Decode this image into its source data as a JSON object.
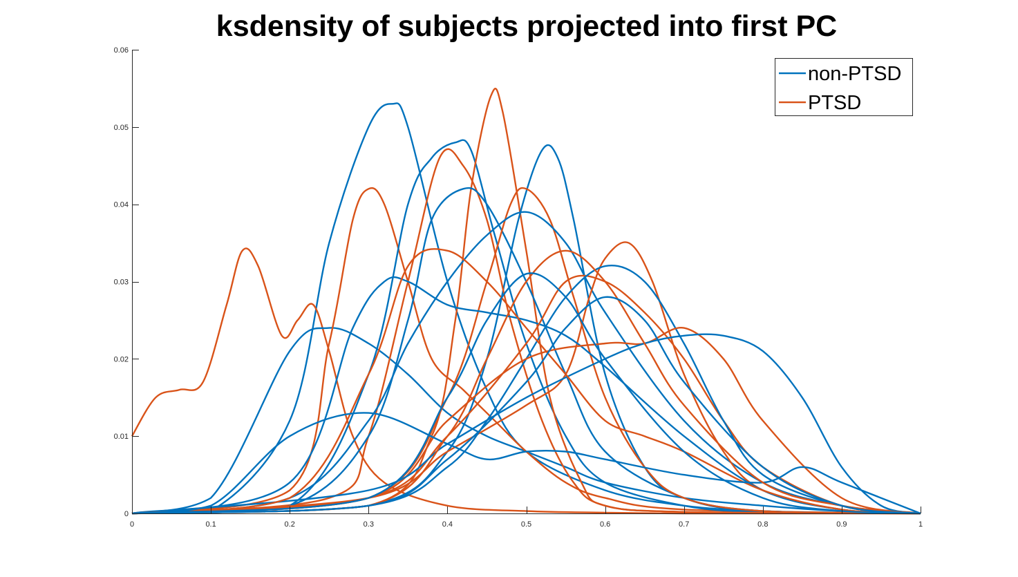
{
  "chart_data": {
    "type": "line",
    "title": "ksdensity of subjects projected into first PC",
    "xlabel": "",
    "ylabel": "",
    "xlim": [
      0,
      1
    ],
    "ylim": [
      0,
      0.06
    ],
    "xticks": [
      0,
      0.1,
      0.2,
      0.3,
      0.4,
      0.5,
      0.6,
      0.7,
      0.8,
      0.9,
      1
    ],
    "xtick_labels": [
      "0",
      "0.1",
      "0.2",
      "0.3",
      "0.4",
      "0.5",
      "0.6",
      "0.7",
      "0.8",
      "0.9",
      "1"
    ],
    "yticks": [
      0,
      0.01,
      0.02,
      0.03,
      0.04,
      0.05,
      0.06
    ],
    "ytick_labels": [
      "0",
      "0.01",
      "0.02",
      "0.03",
      "0.04",
      "0.05",
      "0.06"
    ],
    "grid": false,
    "legend_position": "top-right",
    "colors": {
      "non-PTSD": "#0072BD",
      "PTSD": "#D95319"
    },
    "series": [
      {
        "name": "non-PTSD",
        "color": "#0072BD",
        "description": "overlapping kernel density curves of individual non-PTSD subjects",
        "curves": [
          {
            "x": [
              0,
              0.1,
              0.2,
              0.25,
              0.3,
              0.33,
              0.35,
              0.4,
              0.45,
              0.5,
              0.6,
              0.7,
              0.8,
              0.9,
              1
            ],
            "y": [
              0,
              0.0003,
              0.012,
              0.035,
              0.05,
              0.053,
              0.05,
              0.03,
              0.016,
              0.008,
              0.003,
              0.001,
              0.0003,
              0.0001,
              0
            ]
          },
          {
            "x": [
              0,
              0.1,
              0.2,
              0.25,
              0.3,
              0.35,
              0.4,
              0.45,
              0.5,
              0.55,
              0.6,
              0.7,
              0.8,
              0.9,
              1
            ],
            "y": [
              0,
              0.002,
              0.021,
              0.024,
              0.022,
              0.018,
              0.013,
              0.01,
              0.008,
              0.006,
              0.004,
              0.002,
              0.001,
              0.0003,
              0
            ]
          },
          {
            "x": [
              0,
              0.2,
              0.3,
              0.35,
              0.38,
              0.41,
              0.43,
              0.46,
              0.5,
              0.55,
              0.6,
              0.7,
              0.8,
              1
            ],
            "y": [
              0,
              0.001,
              0.018,
              0.04,
              0.046,
              0.048,
              0.047,
              0.036,
              0.022,
              0.01,
              0.004,
              0.001,
              0.0002,
              0
            ]
          },
          {
            "x": [
              0,
              0.3,
              0.4,
              0.45,
              0.49,
              0.52,
              0.54,
              0.56,
              0.6,
              0.65,
              0.7,
              0.8,
              1
            ],
            "y": [
              0,
              0.001,
              0.008,
              0.02,
              0.038,
              0.047,
              0.046,
              0.038,
              0.018,
              0.006,
              0.002,
              0.0003,
              0
            ]
          },
          {
            "x": [
              0,
              0.2,
              0.3,
              0.35,
              0.38,
              0.42,
              0.45,
              0.5,
              0.55,
              0.6,
              0.7,
              0.8,
              1
            ],
            "y": [
              0,
              0.001,
              0.01,
              0.025,
              0.038,
              0.042,
              0.04,
              0.03,
              0.018,
              0.008,
              0.002,
              0.0003,
              0
            ]
          },
          {
            "x": [
              0,
              0.2,
              0.3,
              0.35,
              0.4,
              0.45,
              0.5,
              0.55,
              0.6,
              0.7,
              0.8,
              0.9,
              1
            ],
            "y": [
              0,
              0.002,
              0.012,
              0.022,
              0.03,
              0.036,
              0.039,
              0.035,
              0.026,
              0.012,
              0.004,
              0.001,
              0
            ]
          },
          {
            "x": [
              0,
              0.2,
              0.28,
              0.32,
              0.35,
              0.4,
              0.45,
              0.5,
              0.55,
              0.6,
              0.7,
              0.8,
              0.9,
              1
            ],
            "y": [
              0,
              0.004,
              0.024,
              0.03,
              0.03,
              0.027,
              0.026,
              0.025,
              0.023,
              0.019,
              0.01,
              0.003,
              0.0005,
              0
            ]
          },
          {
            "x": [
              0,
              0.3,
              0.4,
              0.45,
              0.5,
              0.55,
              0.6,
              0.65,
              0.7,
              0.75,
              0.8,
              0.9,
              1
            ],
            "y": [
              0,
              0.001,
              0.006,
              0.012,
              0.02,
              0.028,
              0.032,
              0.03,
              0.022,
              0.012,
              0.005,
              0.001,
              0
            ]
          },
          {
            "x": [
              0,
              0.3,
              0.4,
              0.5,
              0.6,
              0.65,
              0.7,
              0.75,
              0.8,
              0.85,
              0.9,
              0.95,
              1
            ],
            "y": [
              0,
              0.003,
              0.009,
              0.015,
              0.02,
              0.022,
              0.023,
              0.023,
              0.021,
              0.015,
              0.006,
              0.001,
              0
            ]
          },
          {
            "x": [
              0,
              0.1,
              0.2,
              0.3,
              0.4,
              0.45,
              0.5,
              0.55,
              0.6,
              0.7,
              0.8,
              0.85,
              0.9,
              1
            ],
            "y": [
              0,
              0.001,
              0.01,
              0.013,
              0.009,
              0.007,
              0.008,
              0.008,
              0.007,
              0.005,
              0.004,
              0.006,
              0.004,
              0
            ]
          },
          {
            "x": [
              0,
              0.3,
              0.4,
              0.45,
              0.5,
              0.55,
              0.6,
              0.7,
              0.8,
              0.9,
              1
            ],
            "y": [
              0,
              0.002,
              0.015,
              0.025,
              0.031,
              0.028,
              0.02,
              0.008,
              0.002,
              0.0003,
              0
            ]
          },
          {
            "x": [
              0,
              0.3,
              0.4,
              0.5,
              0.55,
              0.6,
              0.65,
              0.7,
              0.8,
              0.9,
              1
            ],
            "y": [
              0,
              0.001,
              0.007,
              0.017,
              0.024,
              0.028,
              0.025,
              0.017,
              0.006,
              0.001,
              0
            ]
          }
        ]
      },
      {
        "name": "PTSD",
        "color": "#D95319",
        "description": "overlapping kernel density curves of individual PTSD subjects",
        "curves": [
          {
            "x": [
              0,
              0.03,
              0.06,
              0.09,
              0.12,
              0.14,
              0.16,
              0.19,
              0.21,
              0.23,
              0.25,
              0.28,
              0.32,
              0.4,
              0.5,
              0.6,
              0.7,
              0.8,
              1
            ],
            "y": [
              0.01,
              0.015,
              0.016,
              0.017,
              0.027,
              0.034,
              0.032,
              0.023,
              0.025,
              0.027,
              0.021,
              0.01,
              0.004,
              0.001,
              0.0003,
              0.0001,
              0,
              0,
              0
            ]
          },
          {
            "x": [
              0,
              0.2,
              0.25,
              0.28,
              0.3,
              0.32,
              0.35,
              0.38,
              0.42,
              0.46,
              0.5,
              0.55,
              0.6,
              0.7,
              1
            ],
            "y": [
              0,
              0.003,
              0.022,
              0.038,
              0.042,
              0.04,
              0.03,
              0.02,
              0.016,
              0.012,
              0.008,
              0.004,
              0.002,
              0.0005,
              0
            ]
          },
          {
            "x": [
              0,
              0.3,
              0.38,
              0.41,
              0.43,
              0.455,
              0.47,
              0.5,
              0.53,
              0.57,
              0.6,
              0.7,
              1
            ],
            "y": [
              0,
              0.001,
              0.01,
              0.025,
              0.042,
              0.054,
              0.052,
              0.034,
              0.015,
              0.004,
              0.001,
              0.0002,
              0
            ]
          },
          {
            "x": [
              0,
              0.25,
              0.3,
              0.35,
              0.39,
              0.42,
              0.45,
              0.48,
              0.52,
              0.56,
              0.6,
              0.7,
              1
            ],
            "y": [
              0,
              0.002,
              0.01,
              0.03,
              0.046,
              0.045,
              0.038,
              0.025,
              0.012,
              0.004,
              0.001,
              0.0002,
              0
            ]
          },
          {
            "x": [
              0,
              0.3,
              0.4,
              0.45,
              0.48,
              0.5,
              0.53,
              0.56,
              0.6,
              0.65,
              0.7,
              0.8,
              1
            ],
            "y": [
              0,
              0.002,
              0.015,
              0.03,
              0.04,
              0.042,
              0.038,
              0.028,
              0.015,
              0.006,
              0.002,
              0.0003,
              0
            ]
          },
          {
            "x": [
              0,
              0.3,
              0.4,
              0.5,
              0.55,
              0.58,
              0.6,
              0.63,
              0.66,
              0.7,
              0.75,
              0.8,
              0.9,
              1
            ],
            "y": [
              0,
              0.002,
              0.008,
              0.014,
              0.018,
              0.028,
              0.033,
              0.035,
              0.03,
              0.018,
              0.008,
              0.003,
              0.0005,
              0
            ]
          },
          {
            "x": [
              0,
              0.3,
              0.4,
              0.5,
              0.55,
              0.6,
              0.65,
              0.7,
              0.75,
              0.8,
              0.9,
              1
            ],
            "y": [
              0,
              0.002,
              0.01,
              0.022,
              0.03,
              0.03,
              0.026,
              0.02,
              0.012,
              0.006,
              0.001,
              0
            ]
          },
          {
            "x": [
              0,
              0.3,
              0.4,
              0.5,
              0.6,
              0.65,
              0.7,
              0.75,
              0.8,
              0.9,
              1
            ],
            "y": [
              0,
              0.002,
              0.012,
              0.02,
              0.022,
              0.022,
              0.024,
              0.02,
              0.012,
              0.002,
              0
            ]
          },
          {
            "x": [
              0,
              0.2,
              0.3,
              0.35,
              0.4,
              0.45,
              0.5,
              0.55,
              0.6,
              0.65,
              0.7,
              0.8,
              0.9,
              1
            ],
            "y": [
              0,
              0.002,
              0.018,
              0.032,
              0.034,
              0.03,
              0.024,
              0.018,
              0.012,
              0.01,
              0.008,
              0.003,
              0.0005,
              0
            ]
          },
          {
            "x": [
              0,
              0.3,
              0.4,
              0.45,
              0.5,
              0.55,
              0.6,
              0.65,
              0.7,
              0.8,
              0.9,
              1
            ],
            "y": [
              0,
              0.001,
              0.01,
              0.02,
              0.03,
              0.034,
              0.03,
              0.022,
              0.014,
              0.004,
              0.001,
              0
            ]
          }
        ]
      }
    ]
  }
}
